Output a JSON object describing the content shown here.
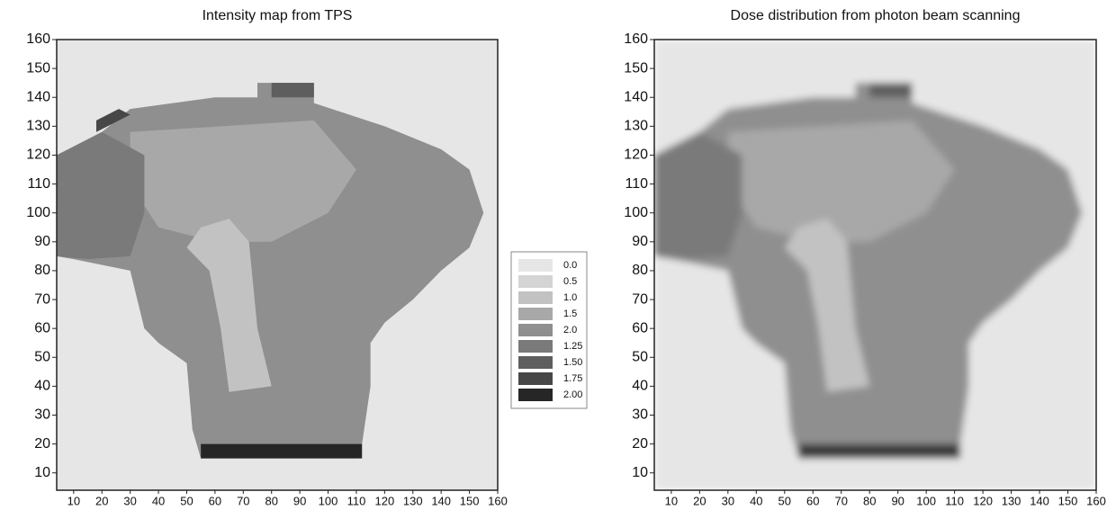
{
  "chart_data": [
    {
      "type": "heatmap",
      "title": "Intensity map from TPS",
      "smoothed": false,
      "xlim": [
        4,
        160
      ],
      "ylim": [
        4,
        160
      ],
      "xticks": [
        10,
        20,
        30,
        40,
        50,
        60,
        70,
        80,
        90,
        100,
        110,
        120,
        130,
        140,
        150,
        160
      ],
      "yticks": [
        10,
        20,
        30,
        40,
        50,
        60,
        70,
        80,
        90,
        100,
        110,
        120,
        130,
        140,
        150,
        160
      ],
      "regions": [
        {
          "level": 0,
          "color": "#e6e6e6",
          "points": [
            [
              4,
              4
            ],
            [
              160,
              4
            ],
            [
              160,
              160
            ],
            [
              4,
              160
            ]
          ]
        },
        {
          "level": 2,
          "color": "#8f8f8f",
          "points": [
            [
              4,
              85
            ],
            [
              4,
              120
            ],
            [
              20,
              128
            ],
            [
              30,
              136
            ],
            [
              60,
              140
            ],
            [
              75,
              140
            ],
            [
              75,
              145
            ],
            [
              95,
              145
            ],
            [
              95,
              138
            ],
            [
              120,
              130
            ],
            [
              140,
              122
            ],
            [
              150,
              115
            ],
            [
              155,
              100
            ],
            [
              150,
              88
            ],
            [
              140,
              80
            ],
            [
              130,
              70
            ],
            [
              120,
              62
            ],
            [
              115,
              55
            ],
            [
              115,
              40
            ],
            [
              112,
              20
            ],
            [
              110,
              15
            ],
            [
              55,
              15
            ],
            [
              52,
              25
            ],
            [
              50,
              48
            ],
            [
              40,
              55
            ],
            [
              35,
              60
            ],
            [
              30,
              80
            ],
            [
              10,
              84
            ]
          ]
        },
        {
          "level": 1.5,
          "color": "#a8a8a8",
          "points": [
            [
              30,
              128
            ],
            [
              95,
              132
            ],
            [
              110,
              115
            ],
            [
              100,
              100
            ],
            [
              80,
              90
            ],
            [
              60,
              90
            ],
            [
              40,
              95
            ],
            [
              30,
              110
            ]
          ]
        },
        {
          "level": 1,
          "color": "#c2c2c2",
          "points": [
            [
              55,
              95
            ],
            [
              65,
              98
            ],
            [
              72,
              90
            ],
            [
              75,
              60
            ],
            [
              80,
              40
            ],
            [
              65,
              38
            ],
            [
              62,
              60
            ],
            [
              58,
              80
            ],
            [
              50,
              88
            ]
          ]
        },
        {
          "level": 1.25,
          "color": "#7a7a7a",
          "points": [
            [
              4,
              85
            ],
            [
              4,
              120
            ],
            [
              20,
              128
            ],
            [
              35,
              120
            ],
            [
              35,
              100
            ],
            [
              30,
              85
            ],
            [
              15,
              84
            ]
          ]
        },
        {
          "level": 1.5,
          "color": "#5e5e5e",
          "points": [
            [
              80,
              140
            ],
            [
              95,
              140
            ],
            [
              95,
              145
            ],
            [
              80,
              145
            ]
          ]
        },
        {
          "level": 2,
          "color": "#262626",
          "points": [
            [
              55,
              15
            ],
            [
              112,
              15
            ],
            [
              112,
              20
            ],
            [
              55,
              20
            ]
          ]
        },
        {
          "level": 1.75,
          "color": "#474747",
          "points": [
            [
              18,
              128
            ],
            [
              30,
              134
            ],
            [
              26,
              136
            ],
            [
              18,
              132
            ]
          ]
        }
      ]
    },
    {
      "type": "heatmap",
      "title": "Dose distribution from photon beam scanning",
      "smoothed": true,
      "xlim": [
        4,
        160
      ],
      "ylim": [
        4,
        160
      ],
      "xticks": [
        10,
        20,
        30,
        40,
        50,
        60,
        70,
        80,
        90,
        100,
        110,
        120,
        130,
        140,
        150,
        160
      ],
      "yticks": [
        10,
        20,
        30,
        40,
        50,
        60,
        70,
        80,
        90,
        100,
        110,
        120,
        130,
        140,
        150,
        160
      ],
      "regions": [
        {
          "level": 0,
          "color": "#e6e6e6",
          "points": [
            [
              4,
              4
            ],
            [
              160,
              4
            ],
            [
              160,
              160
            ],
            [
              4,
              160
            ]
          ]
        },
        {
          "level": 2,
          "color": "#8f8f8f",
          "points": [
            [
              4,
              85
            ],
            [
              4,
              120
            ],
            [
              20,
              128
            ],
            [
              30,
              136
            ],
            [
              60,
              140
            ],
            [
              75,
              140
            ],
            [
              75,
              145
            ],
            [
              95,
              145
            ],
            [
              95,
              138
            ],
            [
              120,
              130
            ],
            [
              140,
              122
            ],
            [
              150,
              115
            ],
            [
              155,
              100
            ],
            [
              150,
              88
            ],
            [
              140,
              80
            ],
            [
              130,
              70
            ],
            [
              120,
              62
            ],
            [
              115,
              55
            ],
            [
              115,
              40
            ],
            [
              112,
              20
            ],
            [
              110,
              15
            ],
            [
              55,
              15
            ],
            [
              52,
              25
            ],
            [
              50,
              48
            ],
            [
              40,
              55
            ],
            [
              35,
              60
            ],
            [
              30,
              80
            ],
            [
              10,
              84
            ]
          ]
        },
        {
          "level": 1.5,
          "color": "#a8a8a8",
          "points": [
            [
              30,
              128
            ],
            [
              95,
              132
            ],
            [
              110,
              115
            ],
            [
              100,
              100
            ],
            [
              80,
              90
            ],
            [
              60,
              90
            ],
            [
              40,
              95
            ],
            [
              30,
              110
            ]
          ]
        },
        {
          "level": 1,
          "color": "#c2c2c2",
          "points": [
            [
              55,
              95
            ],
            [
              65,
              98
            ],
            [
              72,
              90
            ],
            [
              75,
              60
            ],
            [
              80,
              40
            ],
            [
              65,
              38
            ],
            [
              62,
              60
            ],
            [
              58,
              80
            ],
            [
              50,
              88
            ]
          ]
        },
        {
          "level": 1.25,
          "color": "#7a7a7a",
          "points": [
            [
              4,
              85
            ],
            [
              4,
              120
            ],
            [
              20,
              128
            ],
            [
              35,
              120
            ],
            [
              35,
              100
            ],
            [
              30,
              85
            ],
            [
              15,
              84
            ]
          ]
        },
        {
          "level": 1.5,
          "color": "#5e5e5e",
          "points": [
            [
              80,
              140
            ],
            [
              95,
              140
            ],
            [
              95,
              145
            ],
            [
              80,
              145
            ]
          ]
        },
        {
          "level": 2,
          "color": "#3a3a3a",
          "points": [
            [
              55,
              15
            ],
            [
              112,
              15
            ],
            [
              112,
              20
            ],
            [
              55,
              20
            ]
          ]
        }
      ]
    }
  ],
  "legend": {
    "entries": [
      {
        "label": "0.0",
        "color": "#e6e6e6"
      },
      {
        "label": "0.5",
        "color": "#d4d4d4"
      },
      {
        "label": "1.0",
        "color": "#c2c2c2"
      },
      {
        "label": "1.5",
        "color": "#a8a8a8"
      },
      {
        "label": "2.0",
        "color": "#8f8f8f"
      },
      {
        "label": "1.25",
        "color": "#7a7a7a"
      },
      {
        "label": "1.50",
        "color": "#5e5e5e"
      },
      {
        "label": "1.75",
        "color": "#474747"
      },
      {
        "label": "2.00",
        "color": "#262626"
      }
    ]
  }
}
